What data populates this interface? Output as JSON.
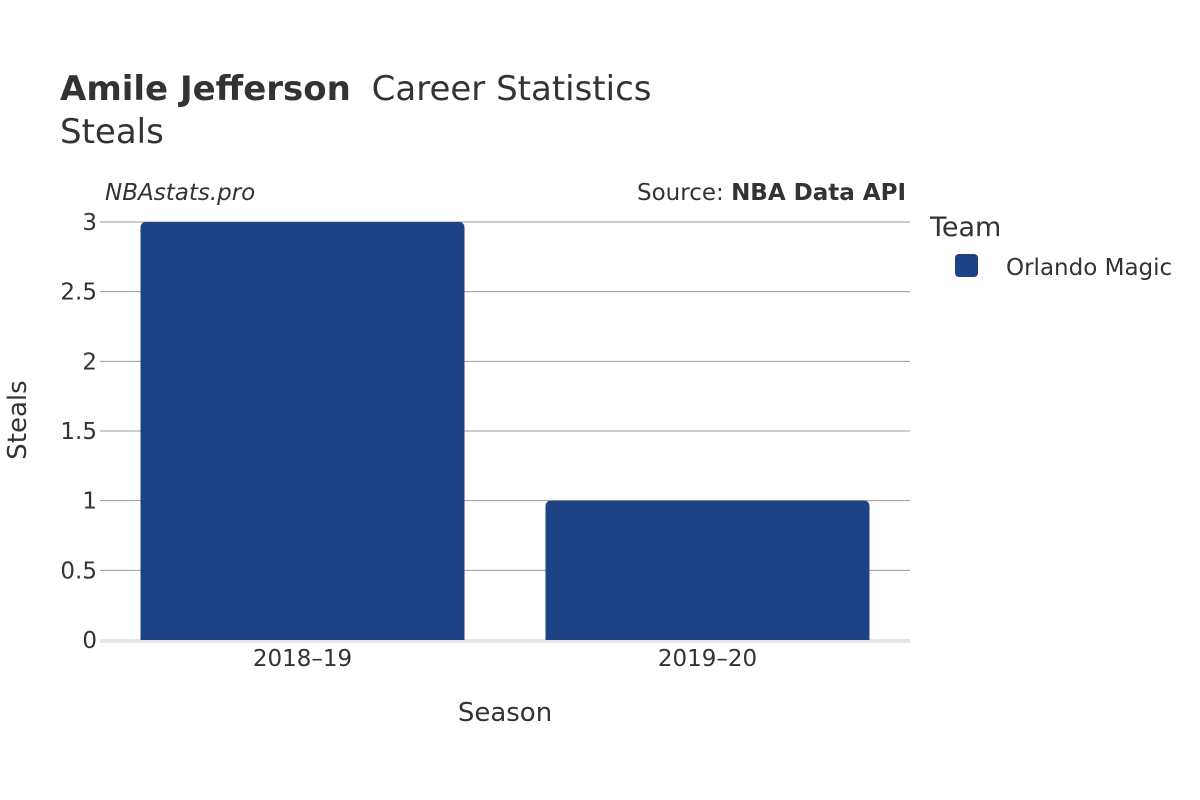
{
  "header": {
    "player_name": "Amile Jefferson",
    "title_rest": "Career Statistics",
    "subtitle": "Steals"
  },
  "credits": {
    "site": "NBAstats.pro",
    "source_prefix": "Source: ",
    "source_name": "NBA Data API"
  },
  "legend": {
    "title": "Team",
    "placement": "right"
  },
  "colors": {
    "bar": "#1d4286",
    "grid": "#999999",
    "baseline": "#e6e6e6",
    "text": "#333333"
  },
  "chart_data": {
    "type": "bar",
    "categories": [
      "2018–19",
      "2019–20"
    ],
    "series": [
      {
        "name": "Orlando Magic",
        "values": [
          3,
          1
        ]
      }
    ],
    "xlabel": "Season",
    "ylabel": "Steals",
    "ylim": [
      0,
      3
    ],
    "yticks": [
      "0",
      "0.5",
      "1",
      "1.5",
      "2",
      "2.5",
      "3"
    ],
    "grid": true
  }
}
